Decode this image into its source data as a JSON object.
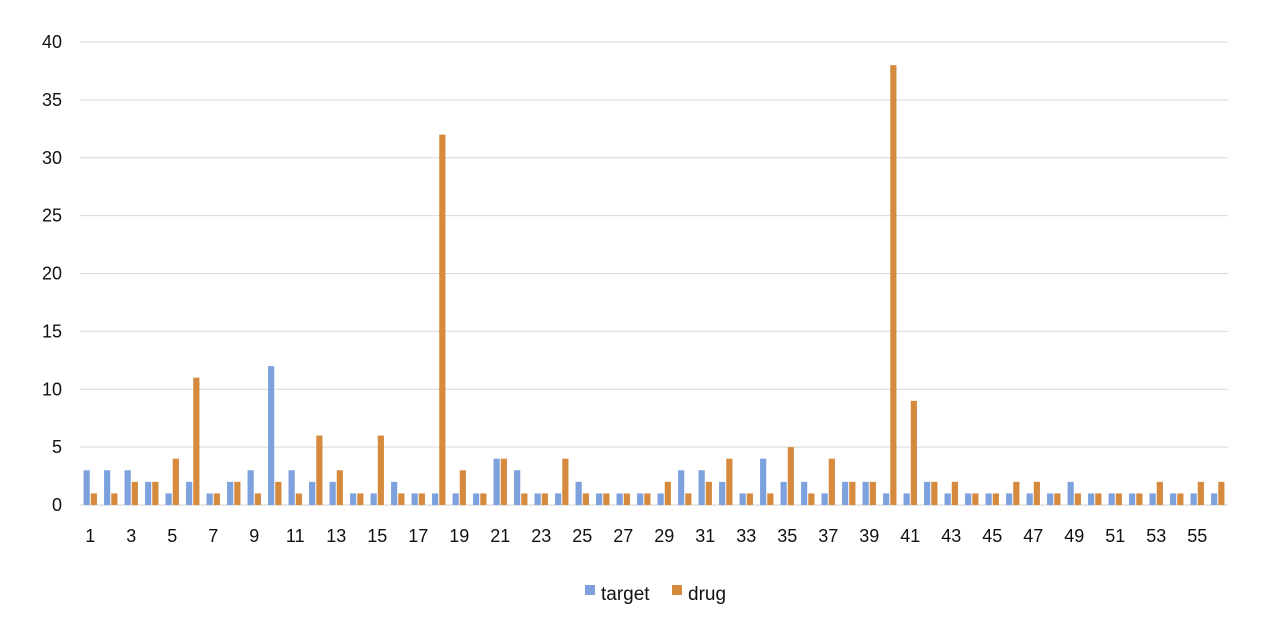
{
  "chart_data": {
    "type": "bar",
    "title": "",
    "xlabel": "",
    "ylabel": "",
    "ylim": [
      0,
      40
    ],
    "yticks": [
      0,
      5,
      10,
      15,
      20,
      25,
      30,
      35,
      40
    ],
    "grid": true,
    "legend_position": "bottom",
    "categories": [
      "1",
      "2",
      "3",
      "4",
      "5",
      "6",
      "7",
      "8",
      "9",
      "10",
      "11",
      "12",
      "13",
      "14",
      "15",
      "16",
      "17",
      "18",
      "19",
      "20",
      "21",
      "22",
      "23",
      "24",
      "25",
      "26",
      "27",
      "28",
      "29",
      "30",
      "31",
      "32",
      "33",
      "34",
      "35",
      "36",
      "37",
      "38",
      "39",
      "40",
      "41",
      "42",
      "43",
      "44",
      "45",
      "46",
      "47",
      "48",
      "49",
      "50",
      "51",
      "52",
      "53",
      "54",
      "55",
      "56"
    ],
    "xtick_labels": [
      "1",
      "3",
      "5",
      "7",
      "9",
      "11",
      "13",
      "15",
      "17",
      "19",
      "21",
      "23",
      "25",
      "27",
      "29",
      "31",
      "33",
      "35",
      "37",
      "39",
      "41",
      "43",
      "45",
      "47",
      "49",
      "51",
      "53",
      "55"
    ],
    "series": [
      {
        "name": "target",
        "color": "#7da1dc",
        "values": [
          3,
          3,
          3,
          2,
          1,
          2,
          1,
          2,
          3,
          12,
          3,
          2,
          2,
          1,
          1,
          2,
          1,
          1,
          1,
          1,
          4,
          3,
          1,
          1,
          2,
          1,
          1,
          1,
          1,
          3,
          3,
          2,
          1,
          4,
          2,
          2,
          1,
          2,
          2,
          1,
          1,
          2,
          1,
          1,
          1,
          1,
          1,
          1,
          2,
          1,
          1,
          1,
          1,
          1,
          1,
          1
        ]
      },
      {
        "name": "drug",
        "color": "#d58a3e",
        "values": [
          1,
          1,
          2,
          2,
          4,
          11,
          1,
          2,
          1,
          2,
          1,
          6,
          3,
          1,
          6,
          1,
          1,
          32,
          3,
          1,
          4,
          1,
          1,
          4,
          1,
          1,
          1,
          1,
          2,
          1,
          2,
          4,
          1,
          1,
          5,
          1,
          4,
          2,
          2,
          38,
          9,
          2,
          2,
          1,
          1,
          2,
          2,
          1,
          1,
          1,
          1,
          1,
          2,
          1,
          2,
          2
        ]
      }
    ]
  }
}
